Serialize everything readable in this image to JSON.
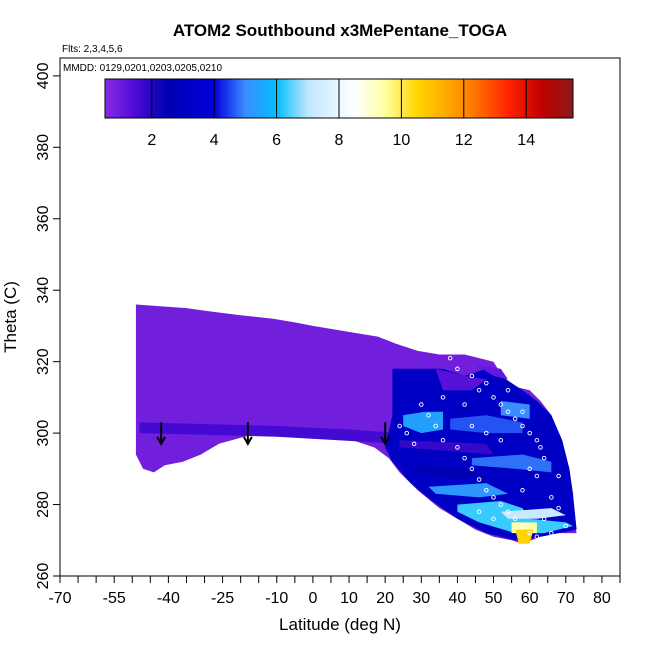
{
  "chart_data": {
    "type": "heatmap",
    "title": "ATOM2 Southbound x3MePentane_TOGA",
    "flights_label": "Flts: 2,3,4,5,6",
    "dates_label": "MMDD: 0129,0201,0203,0205,0210",
    "xlabel": "Latitude (deg N)",
    "ylabel": "Theta (C)",
    "xlim": [
      -70,
      85
    ],
    "ylim": [
      260,
      405
    ],
    "x_ticks": [
      -70,
      -55,
      -40,
      -25,
      -10,
      0,
      10,
      20,
      30,
      40,
      50,
      60,
      70,
      80
    ],
    "x_tick_labels": [
      "-70",
      "-55",
      "-40",
      "-25",
      "-10",
      "0",
      "10",
      "20",
      "30",
      "40",
      "50",
      "60",
      "70",
      "80"
    ],
    "x_minor_ticks": [
      -65,
      -60,
      -50,
      -45,
      -35,
      -30,
      -20,
      -15,
      -5,
      5,
      15,
      25,
      35,
      45,
      55,
      65,
      75,
      85
    ],
    "y_ticks": [
      260,
      280,
      300,
      320,
      340,
      360,
      380,
      400
    ],
    "y_tick_labels": [
      "260",
      "280",
      "300",
      "320",
      "340",
      "360",
      "380",
      "400"
    ],
    "colorbar": {
      "range": [
        0.5,
        15.5
      ],
      "ticks": [
        2,
        4,
        6,
        8,
        10,
        12,
        14
      ],
      "tick_labels": [
        "2",
        "4",
        "6",
        "8",
        "10",
        "12",
        "14"
      ],
      "stops": [
        {
          "v": 0.5,
          "c": "#8a2be2"
        },
        {
          "v": 1.5,
          "c": "#4b0bd6"
        },
        {
          "v": 2.5,
          "c": "#0000b0"
        },
        {
          "v": 4.0,
          "c": "#0000dd"
        },
        {
          "v": 5.0,
          "c": "#3a8cff"
        },
        {
          "v": 6.0,
          "c": "#00bfff"
        },
        {
          "v": 7.0,
          "c": "#bfe6ff"
        },
        {
          "v": 8.5,
          "c": "#ffffff"
        },
        {
          "v": 9.5,
          "c": "#ffffa0"
        },
        {
          "v": 10.5,
          "c": "#ffd700"
        },
        {
          "v": 12.0,
          "c": "#ff8c00"
        },
        {
          "v": 13.5,
          "c": "#ff2000"
        },
        {
          "v": 14.5,
          "c": "#c00000"
        },
        {
          "v": 15.5,
          "c": "#8b1a1a"
        }
      ]
    },
    "background_value": 0.9,
    "field_region": [
      [
        -49,
        336
      ],
      [
        -35,
        335
      ],
      [
        -28,
        334
      ],
      [
        -20,
        333
      ],
      [
        -11,
        332
      ],
      [
        -5,
        331
      ],
      [
        0,
        330
      ],
      [
        6,
        329
      ],
      [
        12,
        328
      ],
      [
        18,
        327
      ],
      [
        23,
        325
      ],
      [
        29,
        323
      ],
      [
        35,
        322
      ],
      [
        42,
        322
      ],
      [
        46,
        321
      ],
      [
        50,
        320
      ],
      [
        53,
        315
      ],
      [
        56,
        313
      ],
      [
        60,
        312
      ],
      [
        63,
        309
      ],
      [
        66,
        305
      ],
      [
        68,
        298
      ],
      [
        70,
        290
      ],
      [
        71,
        285
      ],
      [
        72,
        278
      ],
      [
        73,
        272
      ],
      [
        68,
        272
      ],
      [
        63,
        271
      ],
      [
        58,
        269
      ],
      [
        55,
        270
      ],
      [
        50,
        271
      ],
      [
        45,
        273
      ],
      [
        40,
        276
      ],
      [
        35,
        279
      ],
      [
        29,
        284
      ],
      [
        24,
        289
      ],
      [
        21,
        293
      ],
      [
        17,
        296
      ],
      [
        11,
        298
      ],
      [
        5,
        299
      ],
      [
        -1,
        299
      ],
      [
        -6,
        300
      ],
      [
        -11,
        301
      ],
      [
        -19,
        299
      ],
      [
        -26,
        297
      ],
      [
        -31,
        294
      ],
      [
        -36,
        292
      ],
      [
        -41,
        291
      ],
      [
        -44,
        289
      ],
      [
        -47,
        290
      ],
      [
        -49,
        294
      ],
      [
        -49,
        320
      ]
    ],
    "patches": [
      {
        "points": [
          [
            -48,
            303
          ],
          [
            -10,
            302
          ],
          [
            10,
            301
          ],
          [
            24,
            300
          ],
          [
            24,
            297
          ],
          [
            -10,
            299
          ],
          [
            -48,
            300
          ]
        ],
        "value": 1.6
      },
      {
        "points": [
          [
            22,
            318
          ],
          [
            36,
            318
          ],
          [
            42,
            316
          ],
          [
            48,
            318
          ],
          [
            52,
            316
          ],
          [
            58,
            312
          ],
          [
            62,
            309
          ],
          [
            66,
            305
          ],
          [
            69,
            298
          ],
          [
            71,
            290
          ],
          [
            72,
            283
          ],
          [
            73,
            273
          ],
          [
            63,
            271
          ],
          [
            56,
            270
          ],
          [
            48,
            272
          ],
          [
            40,
            276
          ],
          [
            33,
            281
          ],
          [
            27,
            286
          ],
          [
            22,
            292
          ],
          [
            20,
            296
          ],
          [
            22,
            305
          ]
        ],
        "value": 3.2
      },
      {
        "points": [
          [
            34,
            318
          ],
          [
            42,
            316
          ],
          [
            48,
            315
          ],
          [
            44,
            312
          ],
          [
            36,
            312
          ]
        ],
        "value": 1.3
      },
      {
        "points": [
          [
            45,
            319
          ],
          [
            52,
            318
          ],
          [
            54,
            315
          ],
          [
            50,
            316
          ]
        ],
        "value": 1.1
      },
      {
        "points": [
          [
            25,
            305
          ],
          [
            31,
            306
          ],
          [
            36,
            306
          ],
          [
            36,
            301
          ],
          [
            30,
            300
          ],
          [
            25,
            302
          ]
        ],
        "value": 5.4
      },
      {
        "points": [
          [
            38,
            304
          ],
          [
            48,
            305
          ],
          [
            58,
            303
          ],
          [
            58,
            300
          ],
          [
            48,
            300
          ],
          [
            38,
            301
          ]
        ],
        "value": 4.6
      },
      {
        "points": [
          [
            52,
            309
          ],
          [
            60,
            308
          ],
          [
            60,
            304
          ],
          [
            52,
            305
          ]
        ],
        "value": 5.0
      },
      {
        "points": [
          [
            44,
            293
          ],
          [
            58,
            294
          ],
          [
            66,
            292
          ],
          [
            66,
            289
          ],
          [
            56,
            290
          ],
          [
            44,
            291
          ]
        ],
        "value": 4.8
      },
      {
        "points": [
          [
            24,
            298
          ],
          [
            48,
            297
          ],
          [
            50,
            294
          ],
          [
            38,
            295
          ],
          [
            24,
            296
          ]
        ],
        "value": 1.8
      },
      {
        "points": [
          [
            26,
            291
          ],
          [
            42,
            290
          ],
          [
            48,
            288
          ],
          [
            40,
            287
          ],
          [
            28,
            289
          ]
        ],
        "value": 2.6
      },
      {
        "points": [
          [
            32,
            285
          ],
          [
            48,
            286
          ],
          [
            54,
            283
          ],
          [
            46,
            282
          ],
          [
            34,
            283
          ]
        ],
        "value": 5.2
      },
      {
        "points": [
          [
            40,
            280
          ],
          [
            52,
            281
          ],
          [
            58,
            279
          ],
          [
            60,
            276
          ],
          [
            70,
            275
          ],
          [
            72,
            274
          ],
          [
            64,
            272
          ],
          [
            56,
            272
          ],
          [
            46,
            275
          ],
          [
            40,
            278
          ]
        ],
        "value": 6.3
      },
      {
        "points": [
          [
            52,
            278
          ],
          [
            66,
            279
          ],
          [
            70,
            277
          ],
          [
            62,
            276
          ],
          [
            54,
            276
          ]
        ],
        "value": 7.2
      },
      {
        "points": [
          [
            55,
            275
          ],
          [
            62,
            275
          ],
          [
            62,
            272
          ],
          [
            55,
            272
          ]
        ],
        "value": 9.4
      },
      {
        "points": [
          [
            56,
            273
          ],
          [
            61,
            273
          ],
          [
            60,
            269
          ],
          [
            57,
            269
          ]
        ],
        "value": 10.6
      }
    ],
    "observations": [
      [
        38,
        321
      ],
      [
        40,
        318
      ],
      [
        44,
        316
      ],
      [
        46,
        312
      ],
      [
        48,
        314
      ],
      [
        50,
        310
      ],
      [
        52,
        308
      ],
      [
        54,
        306
      ],
      [
        56,
        304
      ],
      [
        58,
        302
      ],
      [
        60,
        300
      ],
      [
        62,
        298
      ],
      [
        63,
        296
      ],
      [
        64,
        293
      ],
      [
        30,
        308
      ],
      [
        32,
        305
      ],
      [
        34,
        302
      ],
      [
        36,
        298
      ],
      [
        40,
        296
      ],
      [
        42,
        293
      ],
      [
        44,
        290
      ],
      [
        46,
        287
      ],
      [
        48,
        284
      ],
      [
        50,
        282
      ],
      [
        52,
        280
      ],
      [
        54,
        278
      ],
      [
        56,
        276
      ],
      [
        58,
        274
      ],
      [
        60,
        272
      ],
      [
        62,
        271
      ],
      [
        64,
        276
      ],
      [
        66,
        282
      ],
      [
        68,
        288
      ],
      [
        44,
        302
      ],
      [
        48,
        300
      ],
      [
        52,
        298
      ],
      [
        28,
        297
      ],
      [
        26,
        300
      ],
      [
        46,
        278
      ],
      [
        50,
        276
      ],
      [
        58,
        284
      ],
      [
        62,
        288
      ],
      [
        66,
        272
      ],
      [
        70,
        274
      ],
      [
        54,
        312
      ],
      [
        58,
        306
      ],
      [
        42,
        308
      ],
      [
        36,
        310
      ],
      [
        24,
        302
      ],
      [
        68,
        279
      ],
      [
        60,
        290
      ]
    ],
    "arrows": [
      -42,
      -18,
      20
    ],
    "arrow_theta_top": 303,
    "arrow_theta_bottom": 297
  }
}
